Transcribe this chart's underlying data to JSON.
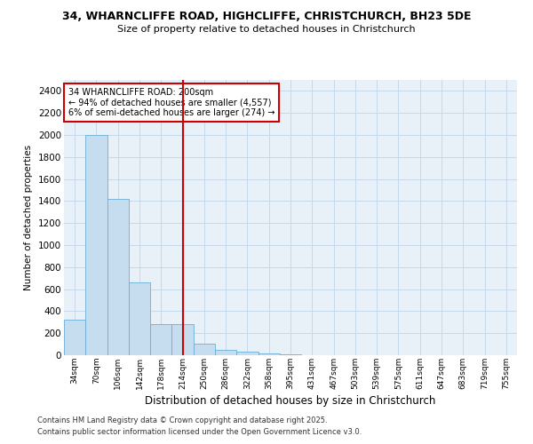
{
  "title1": "34, WHARNCLIFFE ROAD, HIGHCLIFFE, CHRISTCHURCH, BH23 5DE",
  "title2": "Size of property relative to detached houses in Christchurch",
  "xlabel": "Distribution of detached houses by size in Christchurch",
  "ylabel": "Number of detached properties",
  "categories": [
    "34sqm",
    "70sqm",
    "106sqm",
    "142sqm",
    "178sqm",
    "214sqm",
    "250sqm",
    "286sqm",
    "322sqm",
    "358sqm",
    "395sqm",
    "431sqm",
    "467sqm",
    "503sqm",
    "539sqm",
    "575sqm",
    "611sqm",
    "647sqm",
    "683sqm",
    "719sqm",
    "755sqm"
  ],
  "values": [
    320,
    2000,
    1420,
    660,
    285,
    285,
    105,
    45,
    30,
    20,
    10,
    2,
    0,
    0,
    0,
    0,
    0,
    0,
    0,
    0,
    0
  ],
  "bar_color": "#c5ddef",
  "bar_edge_color": "#6aaed6",
  "red_line_index": 5,
  "annotation_line1": "34 WHARNCLIFFE ROAD: 200sqm",
  "annotation_line2": "← 94% of detached houses are smaller (4,557)",
  "annotation_line3": "6% of semi-detached houses are larger (274) →",
  "annotation_box_color": "#ffffff",
  "annotation_box_edge": "#cc0000",
  "red_line_color": "#cc0000",
  "grid_color": "#c5d8ec",
  "background_color": "#e8f0f8",
  "ylim": [
    0,
    2500
  ],
  "yticks": [
    0,
    200,
    400,
    600,
    800,
    1000,
    1200,
    1400,
    1600,
    1800,
    2000,
    2200,
    2400
  ],
  "footer1": "Contains HM Land Registry data © Crown copyright and database right 2025.",
  "footer2": "Contains public sector information licensed under the Open Government Licence v3.0."
}
